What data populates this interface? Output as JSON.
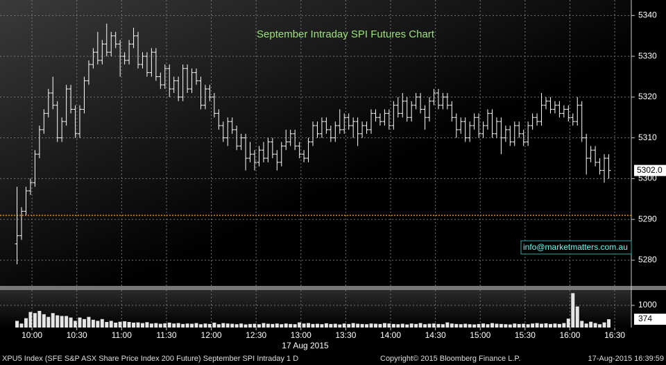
{
  "chart_data": [
    {
      "type": "ohlc",
      "title": "September Intraday SPI Futures Chart",
      "annotation": "info@marketmatters.com.au",
      "close_value_label": "5302.0",
      "color": "#ffffff",
      "reference_line": 5291,
      "reference_color": "#e8891a",
      "grid": true,
      "x": [
        590,
        593,
        596,
        599,
        602,
        605,
        608,
        611,
        614,
        617,
        620,
        623,
        626,
        629,
        632,
        635,
        638,
        641,
        644,
        647,
        650,
        653,
        656,
        659,
        662,
        665,
        668,
        671,
        674,
        677,
        680,
        683,
        686,
        689,
        692,
        695,
        698,
        701,
        704,
        707,
        710,
        713,
        716,
        719,
        722,
        725,
        728,
        731,
        734,
        737,
        740,
        743,
        746,
        749,
        752,
        755,
        758,
        761,
        764,
        767,
        770,
        773,
        776,
        779,
        782,
        785,
        788,
        791,
        794,
        797,
        800,
        803,
        806,
        809,
        812,
        815,
        818,
        821,
        824,
        827,
        830,
        833,
        836,
        839,
        842,
        845,
        848,
        851,
        854,
        857,
        860,
        863,
        866,
        869,
        872,
        875,
        878,
        881,
        884,
        887,
        890,
        893,
        896,
        899,
        902,
        905,
        908,
        911,
        914,
        917,
        920,
        923,
        926,
        929,
        932,
        935,
        938,
        941,
        944,
        947,
        950,
        953,
        956,
        959,
        962,
        965,
        968,
        971,
        974,
        977,
        980,
        983,
        986
      ],
      "open": [
        5284,
        5286,
        5292,
        5297,
        5299,
        5306,
        5312,
        5316,
        5321,
        5318,
        5310,
        5314,
        5322,
        5317,
        5311,
        5317,
        5324,
        5328,
        5331,
        5329,
        5333,
        5331,
        5335,
        5333,
        5330,
        5329,
        5333,
        5335,
        5328,
        5330,
        5326,
        5331,
        5325,
        5323,
        5327,
        5322,
        5324,
        5320,
        5327,
        5322,
        5326,
        5324,
        5318,
        5322,
        5320,
        5316,
        5313,
        5310,
        5314,
        5312,
        5308,
        5310,
        5305,
        5306,
        5304,
        5307,
        5305,
        5309,
        5306,
        5304,
        5308,
        5309,
        5311,
        5308,
        5306,
        5305,
        5309,
        5313,
        5311,
        5314,
        5312,
        5310,
        5313,
        5312,
        5315,
        5313,
        5314,
        5311,
        5313,
        5312,
        5316,
        5315,
        5314,
        5316,
        5313,
        5318,
        5316,
        5319,
        5315,
        5318,
        5320,
        5317,
        5315,
        5319,
        5321,
        5318,
        5320,
        5318,
        5315,
        5312,
        5314,
        5310,
        5313,
        5315,
        5311,
        5313,
        5316,
        5311,
        5314,
        5310,
        5312,
        5309,
        5313,
        5311,
        5309,
        5313,
        5315,
        5314,
        5318,
        5319,
        5317,
        5318,
        5316,
        5317,
        5315,
        5314,
        5318,
        5310,
        5305,
        5307,
        5304,
        5302,
        5305
      ],
      "high": [
        5298,
        5293,
        5298,
        5300,
        5307,
        5313,
        5317,
        5322,
        5325,
        5319,
        5315,
        5323,
        5323,
        5318,
        5318,
        5325,
        5329,
        5332,
        5336,
        5334,
        5338,
        5336,
        5336,
        5334,
        5331,
        5334,
        5337,
        5336,
        5331,
        5331,
        5332,
        5332,
        5326,
        5328,
        5328,
        5325,
        5325,
        5328,
        5328,
        5327,
        5327,
        5325,
        5323,
        5323,
        5321,
        5317,
        5314,
        5315,
        5315,
        5313,
        5311,
        5311,
        5309,
        5307,
        5308,
        5309,
        5310,
        5310,
        5307,
        5309,
        5312,
        5312,
        5312,
        5309,
        5307,
        5310,
        5314,
        5314,
        5315,
        5315,
        5313,
        5314,
        5317,
        5316,
        5316,
        5315,
        5315,
        5314,
        5314,
        5317,
        5317,
        5316,
        5317,
        5317,
        5319,
        5320,
        5321,
        5320,
        5319,
        5321,
        5321,
        5318,
        5320,
        5322,
        5322,
        5321,
        5321,
        5319,
        5316,
        5315,
        5315,
        5314,
        5316,
        5316,
        5314,
        5317,
        5317,
        5315,
        5315,
        5313,
        5313,
        5314,
        5314,
        5312,
        5314,
        5316,
        5316,
        5321,
        5320,
        5320,
        5319,
        5319,
        5318,
        5318,
        5316,
        5320,
        5319,
        5311,
        5308,
        5308,
        5305,
        5306,
        5306
      ],
      "low": [
        5279,
        5285,
        5291,
        5296,
        5298,
        5305,
        5311,
        5315,
        5317,
        5309,
        5309,
        5313,
        5316,
        5310,
        5310,
        5316,
        5323,
        5327,
        5328,
        5328,
        5330,
        5330,
        5332,
        5325,
        5328,
        5328,
        5332,
        5327,
        5327,
        5325,
        5325,
        5324,
        5322,
        5322,
        5320,
        5321,
        5319,
        5319,
        5321,
        5321,
        5323,
        5317,
        5317,
        5319,
        5315,
        5312,
        5309,
        5308,
        5311,
        5307,
        5307,
        5302,
        5304,
        5302,
        5303,
        5304,
        5304,
        5305,
        5302,
        5303,
        5307,
        5308,
        5307,
        5305,
        5304,
        5304,
        5308,
        5310,
        5310,
        5311,
        5309,
        5309,
        5311,
        5311,
        5312,
        5310,
        5308,
        5310,
        5311,
        5311,
        5314,
        5313,
        5313,
        5312,
        5312,
        5315,
        5315,
        5314,
        5314,
        5317,
        5316,
        5312,
        5314,
        5318,
        5317,
        5317,
        5317,
        5314,
        5310,
        5311,
        5309,
        5309,
        5312,
        5310,
        5310,
        5312,
        5310,
        5310,
        5306,
        5309,
        5308,
        5308,
        5310,
        5308,
        5308,
        5312,
        5313,
        5313,
        5317,
        5316,
        5316,
        5315,
        5315,
        5314,
        5313,
        5313,
        5309,
        5301,
        5304,
        5303,
        5301,
        5299,
        5300
      ],
      "close": [
        5286,
        5292,
        5297,
        5299,
        5306,
        5312,
        5316,
        5321,
        5318,
        5310,
        5314,
        5322,
        5317,
        5311,
        5317,
        5324,
        5328,
        5331,
        5329,
        5333,
        5331,
        5335,
        5333,
        5330,
        5329,
        5333,
        5335,
        5328,
        5330,
        5326,
        5331,
        5325,
        5323,
        5327,
        5322,
        5324,
        5320,
        5327,
        5322,
        5326,
        5324,
        5318,
        5322,
        5320,
        5316,
        5313,
        5310,
        5314,
        5312,
        5308,
        5310,
        5305,
        5306,
        5304,
        5307,
        5305,
        5309,
        5306,
        5304,
        5308,
        5309,
        5311,
        5308,
        5306,
        5305,
        5309,
        5313,
        5311,
        5314,
        5312,
        5310,
        5313,
        5312,
        5315,
        5313,
        5314,
        5311,
        5313,
        5312,
        5316,
        5315,
        5314,
        5316,
        5313,
        5318,
        5316,
        5319,
        5315,
        5318,
        5320,
        5317,
        5315,
        5319,
        5321,
        5318,
        5320,
        5318,
        5315,
        5312,
        5314,
        5310,
        5313,
        5315,
        5311,
        5313,
        5316,
        5311,
        5314,
        5310,
        5312,
        5309,
        5313,
        5311,
        5309,
        5313,
        5315,
        5314,
        5318,
        5319,
        5317,
        5318,
        5316,
        5317,
        5315,
        5314,
        5318,
        5310,
        5305,
        5307,
        5304,
        5302,
        5305,
        5302
      ],
      "xlim": [
        578.6,
        1001.1
      ],
      "ylim": [
        5273.7,
        5343.8
      ],
      "yticks": [
        5280,
        5290,
        5300,
        5310,
        5320,
        5330,
        5340
      ]
    },
    {
      "type": "bar",
      "color": "#e6e6e6",
      "grid": true,
      "x_label": "17 Aug 2015",
      "x": [
        590,
        593,
        596,
        599,
        602,
        605,
        608,
        611,
        614,
        617,
        620,
        623,
        626,
        629,
        632,
        635,
        638,
        641,
        644,
        647,
        650,
        653,
        656,
        659,
        662,
        665,
        668,
        671,
        674,
        677,
        680,
        683,
        686,
        689,
        692,
        695,
        698,
        701,
        704,
        707,
        710,
        713,
        716,
        719,
        722,
        725,
        728,
        731,
        734,
        737,
        740,
        743,
        746,
        749,
        752,
        755,
        758,
        761,
        764,
        767,
        770,
        773,
        776,
        779,
        782,
        785,
        788,
        791,
        794,
        797,
        800,
        803,
        806,
        809,
        812,
        815,
        818,
        821,
        824,
        827,
        830,
        833,
        836,
        839,
        842,
        845,
        848,
        851,
        854,
        857,
        860,
        863,
        866,
        869,
        872,
        875,
        878,
        881,
        884,
        887,
        890,
        893,
        896,
        899,
        902,
        905,
        908,
        911,
        914,
        917,
        920,
        923,
        926,
        929,
        932,
        935,
        938,
        941,
        944,
        947,
        950,
        953,
        956,
        959,
        962,
        965,
        968,
        971,
        974,
        977,
        980,
        983,
        986
      ],
      "values": [
        300,
        180,
        420,
        700,
        650,
        750,
        600,
        480,
        650,
        550,
        520,
        520,
        450,
        300,
        450,
        380,
        480,
        350,
        300,
        380,
        250,
        300,
        220,
        260,
        280,
        250,
        220,
        230,
        200,
        240,
        180,
        200,
        170,
        190,
        220,
        180,
        200,
        160,
        180,
        170,
        200,
        150,
        180,
        160,
        220,
        150,
        200,
        180,
        170,
        150,
        180,
        140,
        160,
        170,
        150,
        200,
        170,
        160,
        180,
        150,
        180,
        160,
        150,
        230,
        180,
        200,
        160,
        170,
        150,
        190,
        160,
        170,
        140,
        180,
        160,
        200,
        170,
        160,
        150,
        180,
        170,
        160,
        200,
        180,
        160,
        150,
        170,
        140,
        180,
        160,
        200,
        150,
        170,
        180,
        160,
        150,
        230,
        180,
        160,
        150,
        170,
        150,
        140,
        160,
        180,
        150,
        200,
        170,
        160,
        150,
        140,
        180,
        160,
        170,
        150,
        180,
        200,
        170,
        190,
        160,
        180,
        160,
        200,
        400,
        1550,
        950,
        300,
        180,
        260,
        200,
        150,
        230,
        374
      ],
      "xlim": [
        578.6,
        1001.1
      ],
      "ylim": [
        0,
        1690
      ],
      "yticks": [
        1000
      ],
      "xticks": [
        {
          "value": 600,
          "label": "10:00"
        },
        {
          "value": 630,
          "label": "10:30"
        },
        {
          "value": 660,
          "label": "11:00"
        },
        {
          "value": 690,
          "label": "11:30"
        },
        {
          "value": 720,
          "label": "12:00"
        },
        {
          "value": 750,
          "label": "12:30"
        },
        {
          "value": 780,
          "label": "13:00"
        },
        {
          "value": 810,
          "label": "13:30"
        },
        {
          "value": 840,
          "label": "14:00"
        },
        {
          "value": 870,
          "label": "14:30"
        },
        {
          "value": 900,
          "label": "15:00"
        },
        {
          "value": 930,
          "label": "15:30"
        },
        {
          "value": 960,
          "label": "16:00"
        },
        {
          "value": 990,
          "label": "16:30"
        }
      ]
    }
  ],
  "footer": {
    "security": "XPU5 Index (SFE S&P ASX Share Price Index 200 Future) September SPI Intraday 1 D",
    "copyright": "Copyright© 2015 Bloomberg Finance L.P.",
    "timestamp": "17-Aug-2015 16:39:59"
  }
}
